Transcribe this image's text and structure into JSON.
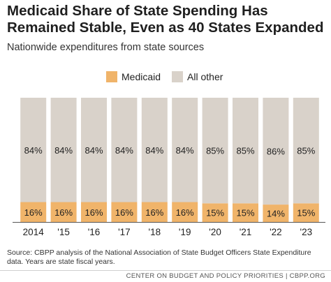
{
  "title": "Medicaid Share of State Spending Has\nRemained Stable, Even as 40 States Expanded",
  "subtitle": "Nationwide expenditures from state sources",
  "colors": {
    "medicaid": "#f0b46a",
    "all_other": "#d9d2ca"
  },
  "chart_data": {
    "type": "bar",
    "stacked": true,
    "categories": [
      "2014",
      "'15",
      "'16",
      "'17",
      "'18",
      "'19",
      "'20",
      "'21",
      "'22",
      "'23"
    ],
    "series": [
      {
        "name": "Medicaid",
        "values": [
          16,
          16,
          16,
          16,
          16,
          16,
          15,
          15,
          14,
          15
        ],
        "labels": [
          "16%",
          "16%",
          "16%",
          "16%",
          "16%",
          "16%",
          "15%",
          "15%",
          "14%",
          "15%"
        ]
      },
      {
        "name": "All other",
        "values": [
          84,
          84,
          84,
          84,
          84,
          84,
          85,
          85,
          86,
          85
        ],
        "labels": [
          "84%",
          "84%",
          "84%",
          "84%",
          "84%",
          "84%",
          "85%",
          "85%",
          "86%",
          "85%"
        ]
      }
    ],
    "ylim": [
      0,
      100
    ],
    "legend": "top"
  },
  "source": "Source: CBPP analysis of the National Association of State Budget Officers State Expenditure data. Years are state fiscal years.",
  "footer": "CENTER ON BUDGET AND POLICY PRIORITIES | CBPP.ORG"
}
